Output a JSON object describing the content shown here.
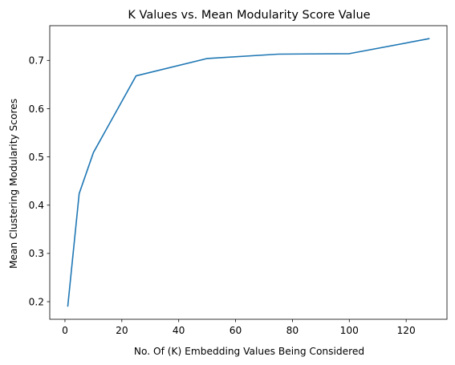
{
  "chart_data": {
    "type": "line",
    "title": "K Values vs. Mean Modularity Score Value",
    "xlabel": "No. Of (K) Embedding Values Being Considered",
    "ylabel": "Mean Clustering Modularity Scores",
    "xlim": [
      -5.35,
      134.35
    ],
    "ylim": [
      0.1635,
      0.772
    ],
    "xticks": [
      0,
      20,
      40,
      60,
      80,
      100,
      120
    ],
    "yticks": [
      0.2,
      0.3,
      0.4,
      0.5,
      0.6,
      0.7
    ],
    "grid": false,
    "series": [
      {
        "color": "#1f77b4",
        "x": [
          1,
          5,
          10,
          25,
          50,
          75,
          100,
          128
        ],
        "y": [
          0.191,
          0.424,
          0.509,
          0.668,
          0.704,
          0.713,
          0.714,
          0.745
        ]
      }
    ]
  }
}
